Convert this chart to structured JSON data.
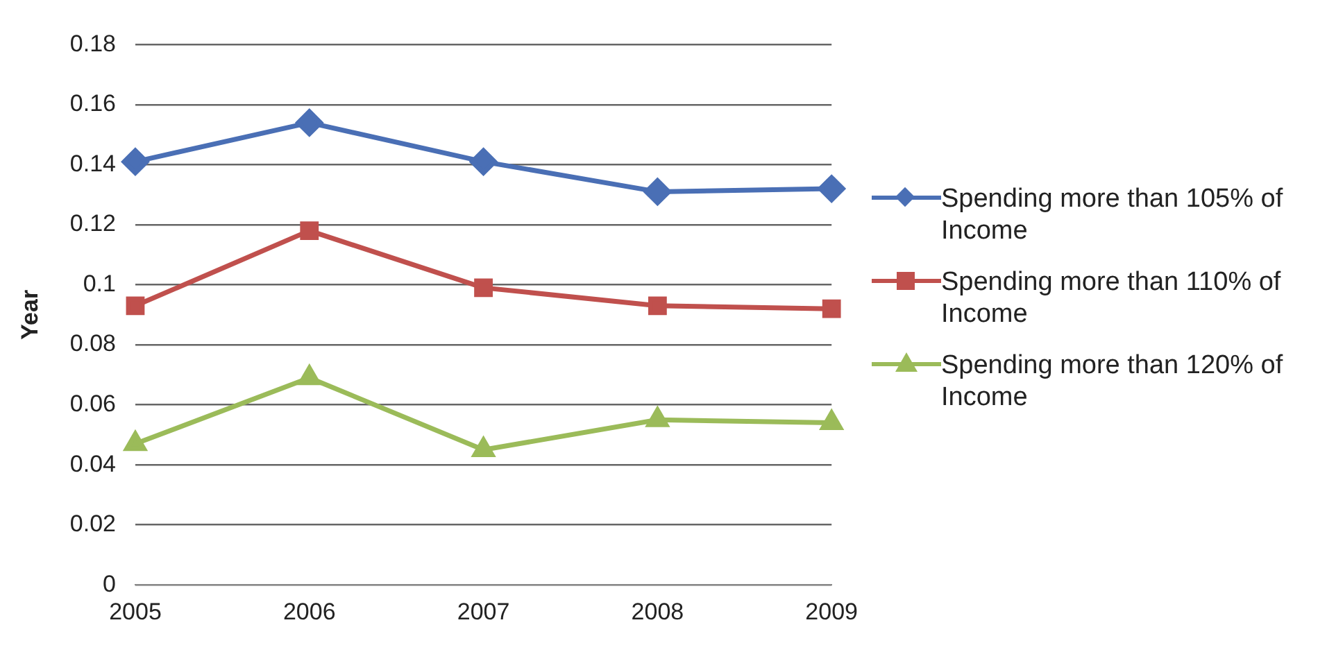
{
  "chart_data": {
    "type": "line",
    "ylabel": "Year",
    "categories": [
      "2005",
      "2006",
      "2007",
      "2008",
      "2009"
    ],
    "series": [
      {
        "name": "Spending more than 105% of Income",
        "color": "#4a6fb5",
        "marker": "diamond",
        "values": [
          0.141,
          0.154,
          0.141,
          0.131,
          0.132
        ]
      },
      {
        "name": "Spending more than 110% of Income",
        "color": "#c0504d",
        "marker": "square",
        "values": [
          0.093,
          0.118,
          0.099,
          0.093,
          0.092
        ]
      },
      {
        "name": "Spending more than 120% of Income",
        "color": "#9bbb59",
        "marker": "triangle",
        "values": [
          0.047,
          0.069,
          0.045,
          0.055,
          0.054
        ]
      }
    ],
    "ylim": [
      0,
      0.18
    ],
    "yticks": [
      0,
      0.02,
      0.04,
      0.06,
      0.08,
      0.1,
      0.12,
      0.14,
      0.16,
      0.18
    ],
    "grid": "y",
    "legend": "right"
  }
}
